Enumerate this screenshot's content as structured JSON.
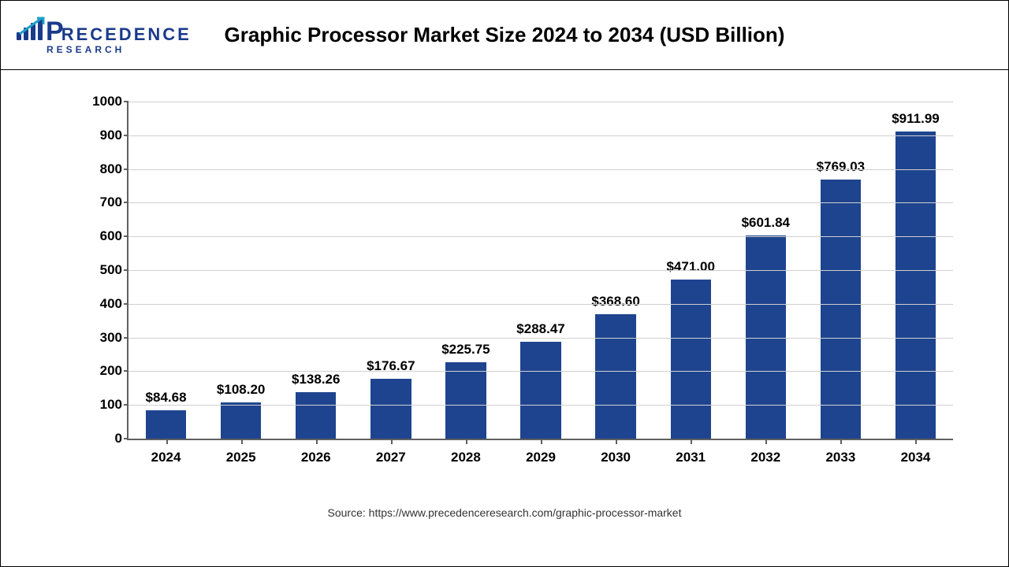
{
  "logo": {
    "main": "PRECEDENCE",
    "sub": "RESEARCH"
  },
  "chart": {
    "type": "bar",
    "title": "Graphic Processor Market Size 2024 to 2034 (USD Billion)",
    "categories": [
      "2024",
      "2025",
      "2026",
      "2027",
      "2028",
      "2029",
      "2030",
      "2031",
      "2032",
      "2033",
      "2034"
    ],
    "values": [
      84.68,
      108.2,
      138.26,
      176.67,
      225.75,
      288.47,
      368.6,
      471.0,
      601.84,
      769.03,
      911.99
    ],
    "display_labels": [
      "$84.68",
      "$108.20",
      "$138.26",
      "$176.67",
      "$225.75",
      "$288.47",
      "$368.60",
      "$471.00",
      "$601.84",
      "$769.03",
      "$911.99"
    ],
    "bar_color": "#1e448f",
    "grid_color": "#d0d0d0",
    "axis_color": "#606060",
    "background_color": "#ffffff",
    "ylim": [
      0,
      1000
    ],
    "ytick_step": 100,
    "yticks": [
      0,
      100,
      200,
      300,
      400,
      500,
      600,
      700,
      800,
      900,
      1000
    ],
    "title_fontsize": 26,
    "label_fontsize": 17,
    "bar_width_pct": 54
  },
  "source": "Source: https://www.precedenceresearch.com/graphic-processor-market"
}
